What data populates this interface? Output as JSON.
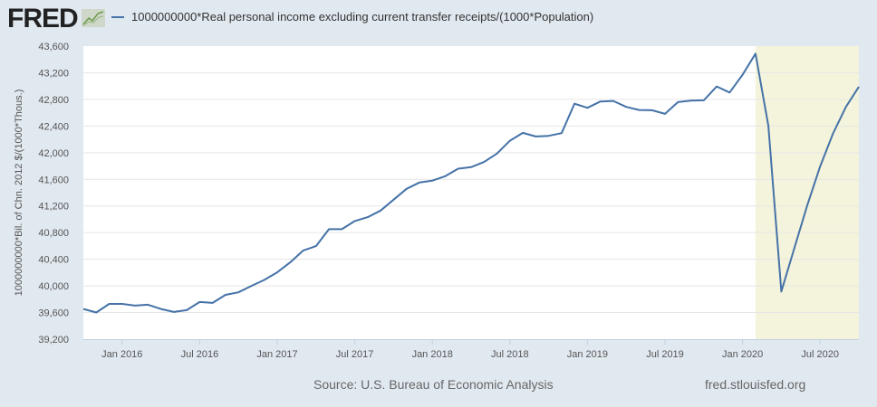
{
  "brand": {
    "logo_text": "FRED"
  },
  "chart_data": {
    "type": "line",
    "title": "",
    "legend": "top-left",
    "series": [
      {
        "name": "1000000000*Real personal income excluding current transfer receipts/(1000*Population)",
        "color": "#4572a7",
        "x": [
          "2015-10",
          "2015-11",
          "2015-12",
          "2016-01",
          "2016-02",
          "2016-03",
          "2016-04",
          "2016-05",
          "2016-06",
          "2016-07",
          "2016-08",
          "2016-09",
          "2016-10",
          "2016-11",
          "2016-12",
          "2017-01",
          "2017-02",
          "2017-03",
          "2017-04",
          "2017-05",
          "2017-06",
          "2017-07",
          "2017-08",
          "2017-09",
          "2017-10",
          "2017-11",
          "2017-12",
          "2018-01",
          "2018-02",
          "2018-03",
          "2018-04",
          "2018-05",
          "2018-06",
          "2018-07",
          "2018-08",
          "2018-09",
          "2018-10",
          "2018-11",
          "2018-12",
          "2019-01",
          "2019-02",
          "2019-03",
          "2019-04",
          "2019-05",
          "2019-06",
          "2019-07",
          "2019-08",
          "2019-09",
          "2019-10",
          "2019-11",
          "2019-12",
          "2020-01",
          "2020-02",
          "2020-03",
          "2020-04",
          "2020-05",
          "2020-06",
          "2020-07",
          "2020-08",
          "2020-09",
          "2020-10"
        ],
        "values": [
          39654,
          39600,
          39730,
          39730,
          39704,
          39718,
          39654,
          39609,
          39636,
          39758,
          39745,
          39866,
          39903,
          40000,
          40090,
          40204,
          40353,
          40530,
          40597,
          40851,
          40851,
          40973,
          41032,
          41131,
          41294,
          41457,
          41552,
          41580,
          41647,
          41760,
          41783,
          41860,
          41986,
          42180,
          42298,
          42244,
          42253,
          42294,
          42736,
          42674,
          42769,
          42777,
          42687,
          42641,
          42637,
          42583,
          42759,
          42782,
          42786,
          42994,
          42904,
          43170,
          43487,
          42403,
          39916,
          40563,
          41204,
          41792,
          42289,
          42687,
          42990
        ]
      }
    ],
    "ylabel": "1000000000*Bil. of Chn. 2012 $/(1000*Thous.)",
    "ylim": [
      39200,
      43600
    ],
    "yticks": [
      "39,200",
      "39,600",
      "40,000",
      "40,400",
      "40,800",
      "41,200",
      "41,600",
      "42,000",
      "42,400",
      "42,800",
      "43,200",
      "43,600"
    ],
    "xlim": [
      "2015-10",
      "2020-10"
    ],
    "xticks": [
      {
        "label": "Jan 2016",
        "date": "2016-01"
      },
      {
        "label": "Jul 2016",
        "date": "2016-07"
      },
      {
        "label": "Jan 2017",
        "date": "2017-01"
      },
      {
        "label": "Jul 2017",
        "date": "2017-07"
      },
      {
        "label": "Jan 2018",
        "date": "2018-01"
      },
      {
        "label": "Jul 2018",
        "date": "2018-07"
      },
      {
        "label": "Jan 2019",
        "date": "2019-01"
      },
      {
        "label": "Jul 2019",
        "date": "2019-07"
      },
      {
        "label": "Jan 2020",
        "date": "2020-01"
      },
      {
        "label": "Jul 2020",
        "date": "2020-07"
      }
    ],
    "recession_shading": {
      "start": "2020-02",
      "end": "2020-10",
      "color": "#f4f4dc"
    },
    "grid": true
  },
  "footer": {
    "source": "Source: U.S. Bureau of Economic Analysis",
    "site": "fred.stlouisfed.org"
  }
}
